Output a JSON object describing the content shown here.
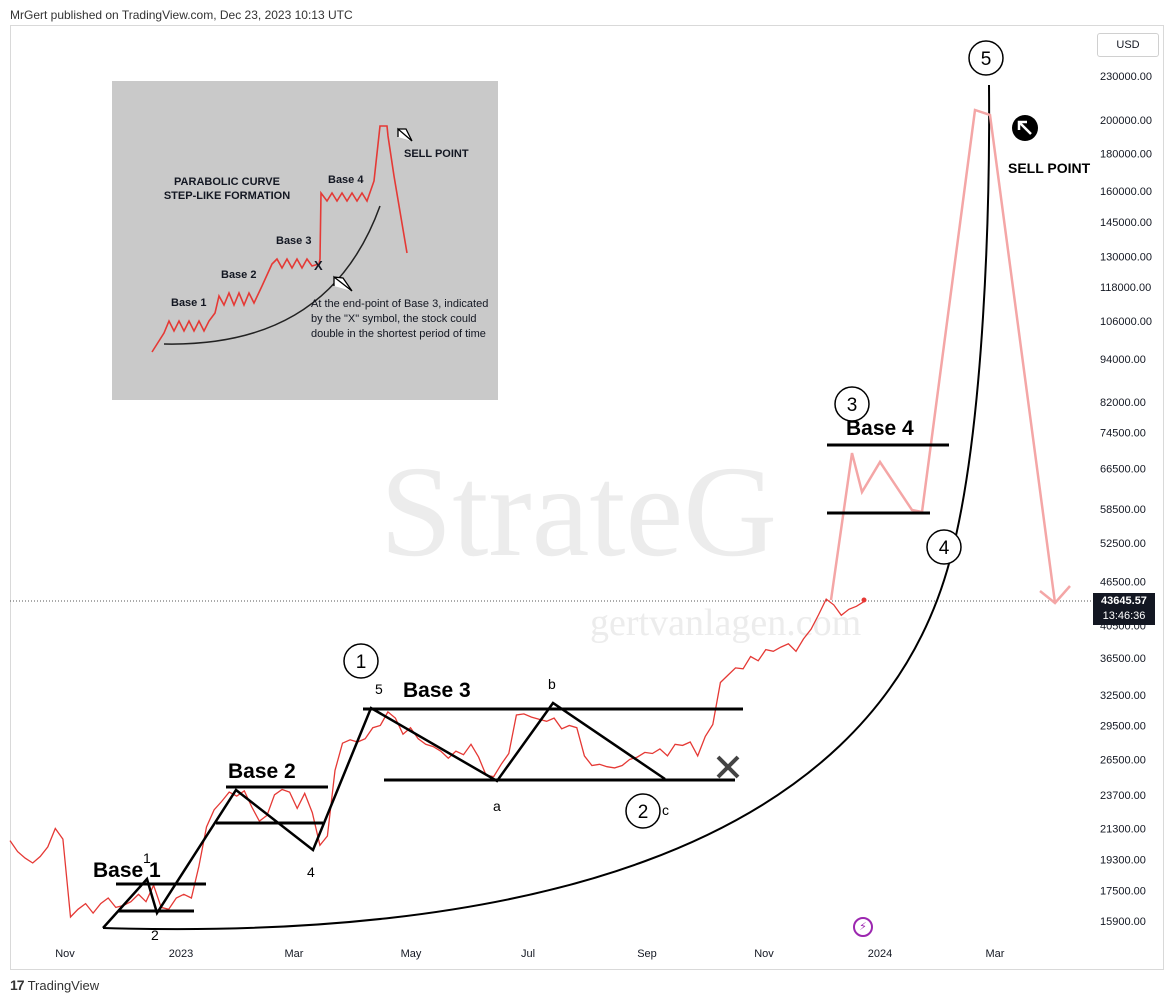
{
  "header": {
    "publisher": "MrGert published on TradingView.com, Dec 23, 2023 10:13 UTC"
  },
  "footer": {
    "brand": "TradingView",
    "logo": "17"
  },
  "axis": {
    "currency": "USD"
  },
  "current_price": {
    "value": "43645.57",
    "countdown": "13:46:36"
  },
  "watermark": {
    "main": "StrateG",
    "url": "gertvanlagen.com"
  },
  "annotations": {
    "base1": "Base 1",
    "base2": "Base 2",
    "base3": "Base 3",
    "base4": "Base 4",
    "sell_point": "SELL POINT",
    "wave_labels": [
      "1",
      "2",
      "3",
      "4",
      "5"
    ],
    "sub_labels": [
      "1",
      "2",
      "4",
      "5",
      "a",
      "b",
      "c"
    ]
  },
  "inset": {
    "title_line1": "PARABOLIC CURVE",
    "title_line2": "STEP-LIKE FORMATION",
    "base1": "Base 1",
    "base2": "Base 2",
    "base3": "Base 3",
    "base4": "Base 4",
    "sell": "SELL POINT",
    "x_mark": "X",
    "note": "At the end-point of Base 3, indicated by the \"X\" symbol, the stock could double in the shortest period of time"
  },
  "chart_data": {
    "type": "line",
    "x_ticks": [
      "Nov",
      "2023",
      "Mar",
      "May",
      "Jul",
      "Sep",
      "Nov",
      "2024",
      "Mar"
    ],
    "y_ticks": [
      "230000.00",
      "200000.00",
      "180000.00",
      "160000.00",
      "145000.00",
      "130000.00",
      "118000.00",
      "106000.00",
      "94000.00",
      "82000.00",
      "74500.00",
      "66500.00",
      "58500.00",
      "52500.00",
      "46500.00",
      "40500.00",
      "36500.00",
      "32500.00",
      "29500.00",
      "26500.00",
      "23700.00",
      "21300.00",
      "19300.00",
      "17500.00",
      "15900.00"
    ],
    "y_scale": "log",
    "series": [
      {
        "values": [
          20500,
          19800,
          19400,
          19100,
          19500,
          20100,
          21300,
          20600,
          16100,
          16500,
          16800,
          16300,
          16800,
          17100,
          16600,
          16700,
          16900,
          17300,
          16900,
          17800,
          16600,
          16500,
          17100,
          17300,
          17100,
          18900,
          21400,
          22600,
          23200,
          23900,
          23600,
          24000,
          22800,
          21800,
          22200,
          23700,
          24100,
          23900,
          22700,
          23800,
          22400,
          20200,
          20800,
          25600,
          27900,
          28200,
          28000,
          28300,
          29300,
          29500,
          30800,
          30200,
          28700,
          29300,
          28300,
          27800,
          27600,
          27200,
          26600,
          27200,
          26900,
          27800,
          26700,
          25200,
          25100,
          26100,
          27000,
          30500,
          30600,
          30300,
          30100,
          29900,
          30200,
          29200,
          29500,
          29300,
          26800,
          26000,
          26100,
          25900,
          25800,
          26000,
          26500,
          26700,
          27100,
          27000,
          27400,
          26800,
          27800,
          27700,
          28000,
          26800,
          28500,
          29600,
          33800,
          34600,
          35400,
          35300,
          36700,
          36200,
          37500,
          37300,
          37800,
          38200,
          37300,
          38800,
          40000,
          41900,
          44000,
          43200,
          41800,
          42600,
          43000,
          43645.57
        ]
      }
    ]
  }
}
